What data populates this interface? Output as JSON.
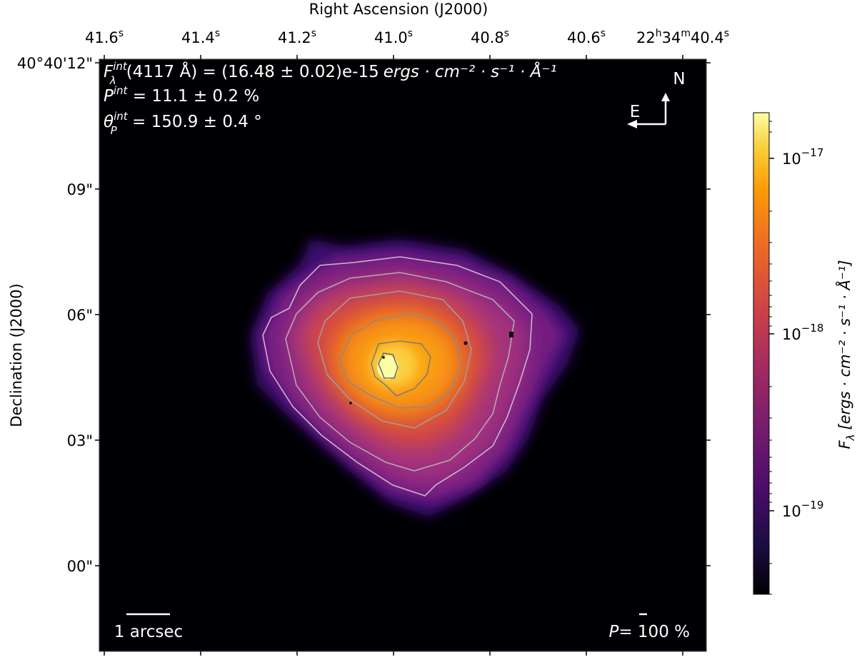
{
  "figure": {
    "xlabel": "Right Ascension (J2000)",
    "ylabel": "Declination (J2000)",
    "ra_ticks": [
      {
        "main": "41.6",
        "sup": "s"
      },
      {
        "main": "41.4",
        "sup": "s"
      },
      {
        "main": "41.2",
        "sup": "s"
      },
      {
        "main": "41.0",
        "sup": "s"
      },
      {
        "main": "40.8",
        "sup": "s"
      },
      {
        "main": "40.6",
        "sup": "s"
      },
      {
        "main": "22h34m40.4s",
        "sup": ""
      }
    ],
    "ra_last": {
      "h": "22",
      "h_sup": "h",
      "m": "34",
      "m_sup": "m",
      "s": "40.4",
      "s_sup": "s"
    },
    "dec_ticks": [
      "40°40'12\"",
      "09\"",
      "06\"",
      "03\"",
      "00\""
    ],
    "annotations": {
      "flux_sym": "F",
      "flux_sup": "int",
      "flux_sub": "λ",
      "flux_text": "(4117 Å) = (16.48 ± 0.02)e-15",
      "flux_units": "ergs · cm⁻² · s⁻¹ · Å⁻¹",
      "pol_sym": "P",
      "pol_sup": "int",
      "pol_text": " = 11.1 ± 0.2 %",
      "theta_sym": "θ",
      "theta_sup": "int",
      "theta_sub": "P",
      "theta_text": " = 150.9 ± 0.4 °"
    },
    "compass": {
      "north": "N",
      "east": "E"
    },
    "scalebar_label": "1 arcsec",
    "pol_scale_sym": "P",
    "pol_scale_text": "= 100 %",
    "colorbar": {
      "label_sym": "F",
      "label_sub": "λ",
      "label_units": "[ergs · cm⁻² · s⁻¹ · Å⁻¹]",
      "ticks": [
        {
          "base": "10",
          "exp": "−17"
        },
        {
          "base": "10",
          "exp": "−18"
        },
        {
          "base": "10",
          "exp": "−19"
        }
      ],
      "colormap": "inferno",
      "scale": "log"
    }
  }
}
